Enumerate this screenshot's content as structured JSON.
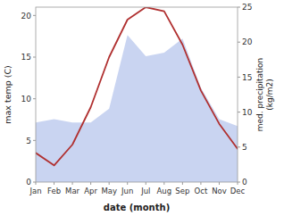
{
  "chart_data": {
    "type": "line",
    "categories": [
      "Jan",
      "Feb",
      "Mar",
      "Apr",
      "May",
      "Jun",
      "Jul",
      "Aug",
      "Sep",
      "Oct",
      "Nov",
      "Dec"
    ],
    "series": [
      {
        "type": "area",
        "axis": "y2",
        "color": "#c0ccee",
        "values": [
          8.5,
          9.0,
          8.5,
          8.5,
          10.5,
          21.0,
          18.0,
          18.5,
          20.5,
          13.5,
          9.0,
          8.0
        ]
      },
      {
        "type": "line",
        "color": "#b03030",
        "values": [
          3.5,
          2.0,
          4.5,
          9.0,
          15.0,
          19.5,
          21.0,
          20.5,
          16.5,
          11.0,
          7.0,
          4.0
        ]
      }
    ],
    "xlabel": "date (month)",
    "ylabel": "max temp (C)",
    "y2label": "med. precipitation\n(kg/m2)",
    "ylim": [
      0,
      21
    ],
    "yticks": [
      0,
      5,
      10,
      15,
      20
    ],
    "y2lim": [
      0,
      25
    ],
    "y2ticks": [
      0,
      5,
      10,
      15,
      20,
      25
    ],
    "grid": false
  }
}
